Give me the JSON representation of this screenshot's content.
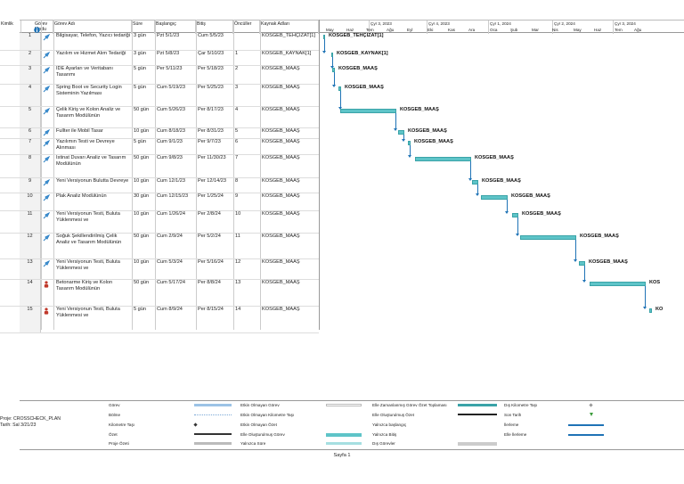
{
  "columns": {
    "id": "Kimlik",
    "mode": "Görev Modu",
    "name": "Görev Adı",
    "dur": "Süre",
    "start": "Başlangıç",
    "end": "Bitiş",
    "pred": "Öncüller",
    "res": "Kaynak Adları"
  },
  "timeline": {
    "quarters": [
      "Çyr 3, 2023",
      "Çyr 4, 2023",
      "Çyr 1, 2024",
      "Çyr 2, 2024",
      "Çyr 3, 2024"
    ],
    "months": [
      "May",
      "Haz",
      "Tem",
      "Ağu",
      "Eyl",
      "Eki",
      "Kas",
      "Ara",
      "Oca",
      "Şub",
      "Mar",
      "Nis",
      "May",
      "Haz",
      "Tem",
      "Ağu"
    ]
  },
  "rows": [
    {
      "id": "1",
      "name": "Bilgisayar, Telefon, Yazıcı tedariği",
      "dur": "3 gün",
      "start": "Pzt 5/1/23",
      "end": "Cum 5/5/23",
      "pred": "",
      "res": "KOSGEB_TEHÇIZAT[1]",
      "bar_label": "KOSGEB_TEHÇIZAT[1]"
    },
    {
      "id": "2",
      "name": "Yazılım ve Hizmet Alım Tedariği",
      "dur": "3 gün",
      "start": "Pzt 5/8/23",
      "end": "Çar 5/10/23",
      "pred": "1",
      "res": "KOSGEB_KAYNAK[1]",
      "bar_label": "KOSGEB_KAYNAK[1]"
    },
    {
      "id": "3",
      "name": "IDE Ayarları ve Veritabanı Tasarımı",
      "dur": "5 gün",
      "start": "Per 5/11/23",
      "end": "Per 5/18/23",
      "pred": "2",
      "res": "KOSGEB_MAAŞ",
      "bar_label": "KOSGEB_MAAŞ"
    },
    {
      "id": "4",
      "name": "Spring Boot ve Security Login Sisteminin Yazılması",
      "dur": "5 gün",
      "start": "Cum 5/19/23",
      "end": "Per 5/25/23",
      "pred": "3",
      "res": "KOSGEB_MAAŞ",
      "bar_label": "KOSGEB_MAAŞ"
    },
    {
      "id": "5",
      "name": "Çelik Kiriş ve Kolon Analiz ve Tasarım Modülünün",
      "dur": "50 gün",
      "start": "Cum 5/26/23",
      "end": "Per 8/17/23",
      "pred": "4",
      "res": "KOSGEB_MAAŞ",
      "bar_label": "KOSGEB_MAAŞ"
    },
    {
      "id": "6",
      "name": "Fullter ile Mobil Tasar",
      "dur": "10 gün",
      "start": "Cum 8/18/23",
      "end": "Per 8/31/23",
      "pred": "5",
      "res": "KOSGEB_MAAŞ",
      "bar_label": "KOSGEB_MAAŞ"
    },
    {
      "id": "7",
      "name": "Yazılımın Testi ve Devreye Alınması",
      "dur": "5 gün",
      "start": "Cum 9/1/23",
      "end": "Per 9/7/23",
      "pred": "6",
      "res": "KOSGEB_MAAŞ",
      "bar_label": "KOSGEB_MAAŞ"
    },
    {
      "id": "8",
      "name": "İstinat Duvarı Analiz ve Tasarım Modülünün",
      "dur": "50 gün",
      "start": "Cum 9/8/23",
      "end": "Per 11/30/23",
      "pred": "7",
      "res": "KOSGEB_MAAŞ",
      "bar_label": "KOSGEB_MAAŞ"
    },
    {
      "id": "9",
      "name": "Yeni Versiyonun Bulutta Devreye",
      "dur": "10 gün",
      "start": "Cum 12/1/23",
      "end": "Per 12/14/23",
      "pred": "8",
      "res": "KOSGEB_MAAŞ",
      "bar_label": "KOSGEB_MAAŞ"
    },
    {
      "id": "10",
      "name": "Plak Analiz Modülünün",
      "dur": "30 gün",
      "start": "Cum 12/15/23",
      "end": "Per 1/25/24",
      "pred": "9",
      "res": "KOSGEB_MAAŞ",
      "bar_label": "KOSGEB_MAAŞ"
    },
    {
      "id": "11",
      "name": "Yeni Versiyonun Testi, Buluta Yüklenmesi ve",
      "dur": "10 gün",
      "start": "Cum 1/26/24",
      "end": "Per 2/8/24",
      "pred": "10",
      "res": "KOSGEB_MAAŞ",
      "bar_label": "KOSGEB_MAAŞ"
    },
    {
      "id": "12",
      "name": "Soğuk Şekillendirilmiş Çelik Analiz ve Tasarım Modülünün",
      "dur": "50 gün",
      "start": "Cum 2/9/24",
      "end": "Per 5/2/24",
      "pred": "11",
      "res": "KOSGEB_MAAŞ",
      "bar_label": "KOSGEB_MAAŞ"
    },
    {
      "id": "13",
      "name": "Yeni Versiyonun Testi, Buluta Yüklenmesi ve",
      "dur": "10 gün",
      "start": "Cum 5/3/24",
      "end": "Per 5/16/24",
      "pred": "12",
      "res": "KOSGEB_MAAŞ",
      "bar_label": "KOSGEB_MAAŞ"
    },
    {
      "id": "14",
      "name": "Betonarme Kiriş ve Kolon Tasarım Modülünün",
      "dur": "50 gün",
      "start": "Cum 5/17/24",
      "end": "Per 8/8/24",
      "pred": "13",
      "res": "KOSGEB_MAAŞ",
      "bar_label": "KOS"
    },
    {
      "id": "15",
      "name": "Yeni Versiyonun Testi, Buluta Yüklenmesi ve",
      "dur": "5 gün",
      "start": "Cum 8/9/24",
      "end": "Per 8/15/24",
      "pred": "14",
      "res": "KOSGEB_MAAŞ",
      "bar_label": "KO"
    }
  ],
  "legend": {
    "project": "Proje: CROSSCHECK_PLAN",
    "date": "Tarih: Sal 3/21/23",
    "col1": [
      "Görev",
      "Bölme",
      "Kilometre Taşı",
      "Özet",
      "Proje Özeti"
    ],
    "col2": [
      "Etkin Olmayan Görev",
      "Etkin Olmayan Kilometre Taşı",
      "Etkin Olmayan Özet",
      "Elle Oluşturulmuş Görev",
      "Yalnızca Süre"
    ],
    "col3": [
      "Elle Zamanlanmış Görev Özet Toplaması",
      "Elle Oluşturulmuş Özet",
      "Yalnızca başlangıç",
      "Yalnızca Bitiş",
      "Dış Görevler"
    ],
    "col4": [
      "Dış Kilometre Taşı",
      "Son Tarih",
      "İlerleme",
      "Elle İlerleme"
    ]
  },
  "footer": "Sayfa 1",
  "colors": {
    "bar": "#5ec4c8",
    "link": "#1f73b6",
    "warn": "#c0392b"
  }
}
